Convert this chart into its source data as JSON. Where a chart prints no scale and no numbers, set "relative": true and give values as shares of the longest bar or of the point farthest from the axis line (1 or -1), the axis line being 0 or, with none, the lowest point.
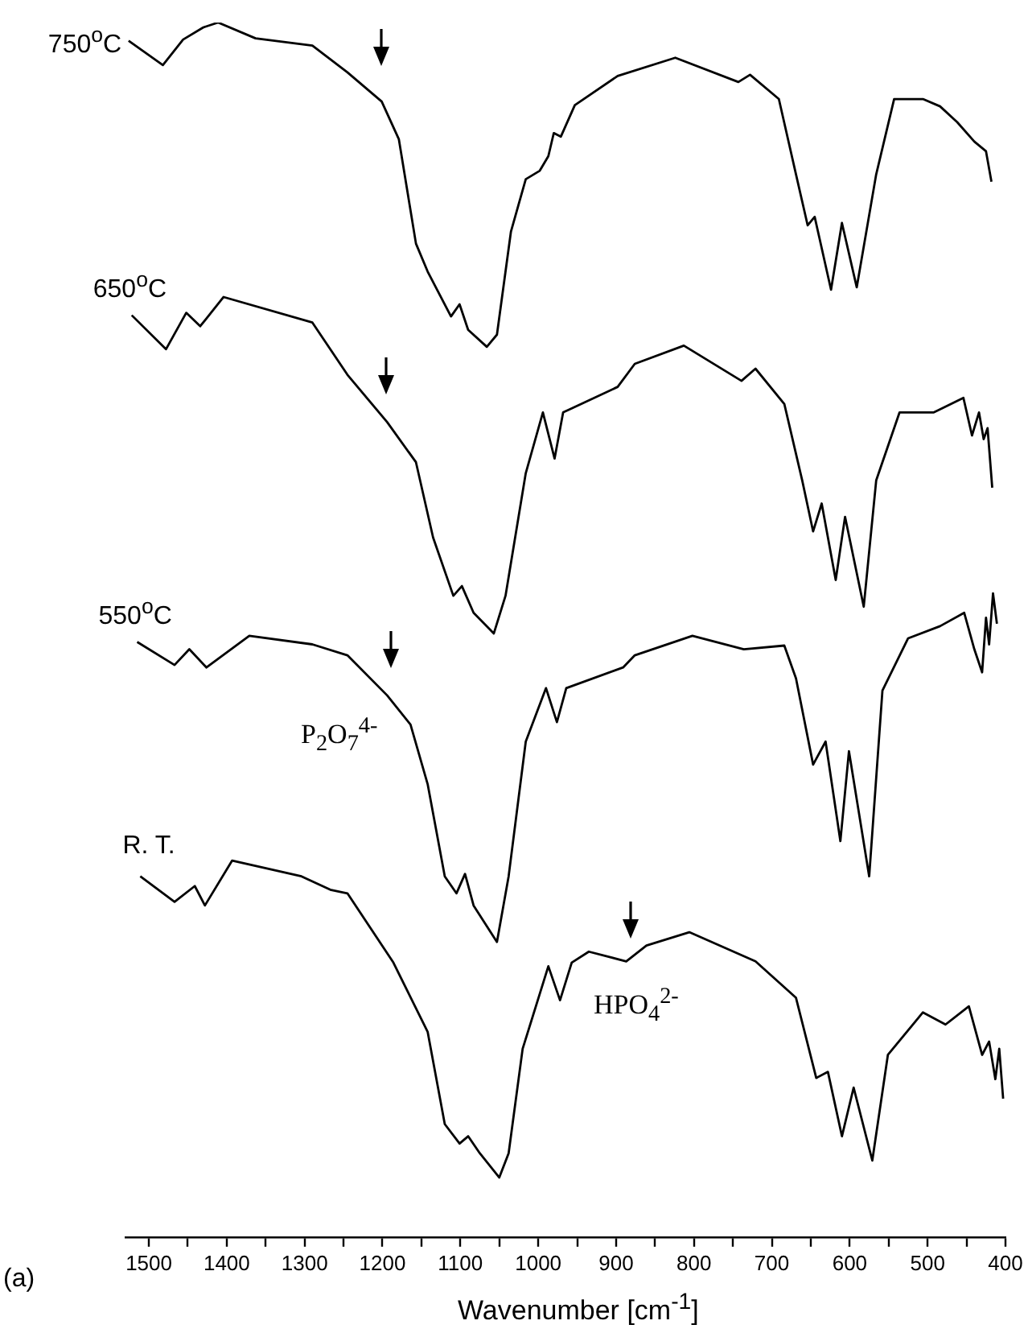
{
  "chart_data": {
    "type": "line",
    "relative": true,
    "xlabel": "Wavenumber [cm$^{-1}$]",
    "xlim": [
      1530,
      400
    ],
    "xticks": [
      1500,
      {
        "value": 1450,
        "label": null
      },
      1400,
      {
        "value": 1350,
        "label": null
      },
      1300,
      {
        "value": 1250,
        "label": null
      },
      1200,
      {
        "value": 1150,
        "label": null
      },
      1100,
      {
        "value": 1050,
        "label": null
      },
      1000,
      {
        "value": 950,
        "label": null
      },
      900,
      {
        "value": 850,
        "label": null
      },
      800,
      {
        "value": 750,
        "label": null
      },
      700,
      {
        "value": 650,
        "label": null
      },
      600,
      {
        "value": 550,
        "label": null
      },
      500,
      {
        "value": 450,
        "label": null
      },
      400
    ],
    "grid": false,
    "legend": false,
    "marker": "none",
    "line_style": "solid",
    "annotations": [
      "P$_{2}$O$_{7}$$^{4-}$",
      "HPO$_{4}$$^{2-}$",
      "(a)"
    ],
    "series": [
      {
        "name": "750$^{o}$C",
        "color": "#000000",
        "x": [
          1526,
          1482,
          1456,
          1430,
          1411,
          1363,
          1290,
          1245,
          1201,
          1179,
          1157,
          1142,
          1112,
          1101,
          1090,
          1066,
          1053,
          1035,
          1016,
          998,
          987,
          980,
          971,
          953,
          898,
          824,
          743,
          728,
          691,
          669,
          654,
          645,
          624,
          610,
          591,
          566,
          543,
          506,
          484,
          462,
          440,
          425,
          418
        ],
        "values": [
          0.985,
          0.965,
          0.986,
          0.996,
          1.0,
          0.987,
          0.981,
          0.959,
          0.935,
          0.904,
          0.818,
          0.795,
          0.758,
          0.768,
          0.747,
          0.733,
          0.743,
          0.828,
          0.871,
          0.878,
          0.89,
          0.909,
          0.906,
          0.932,
          0.956,
          0.971,
          0.951,
          0.957,
          0.937,
          0.875,
          0.833,
          0.84,
          0.78,
          0.835,
          0.782,
          0.875,
          0.937,
          0.937,
          0.931,
          0.918,
          0.902,
          0.894,
          0.869
        ]
      },
      {
        "name": "650$^{o}$C",
        "color": "#000000",
        "x": [
          1522,
          1478,
          1452,
          1434,
          1404,
          1290,
          1245,
          1194,
          1157,
          1135,
          1109,
          1098,
          1083,
          1057,
          1042,
          1016,
          994,
          979,
          968,
          898,
          876,
          813,
          739,
          721,
          684,
          661,
          647,
          636,
          618,
          606,
          582,
          566,
          536,
          492,
          454,
          443,
          434,
          428,
          423,
          417
        ],
        "values": [
          0.759,
          0.731,
          0.761,
          0.75,
          0.774,
          0.753,
          0.71,
          0.671,
          0.638,
          0.576,
          0.528,
          0.536,
          0.514,
          0.497,
          0.528,
          0.629,
          0.679,
          0.641,
          0.679,
          0.7,
          0.719,
          0.734,
          0.705,
          0.715,
          0.686,
          0.623,
          0.581,
          0.604,
          0.541,
          0.593,
          0.519,
          0.623,
          0.679,
          0.679,
          0.691,
          0.66,
          0.679,
          0.657,
          0.666,
          0.617
        ]
      },
      {
        "name": "550$^{o}$C",
        "color": "#000000",
        "x": [
          1515,
          1467,
          1448,
          1426,
          1371,
          1290,
          1245,
          1194,
          1164,
          1142,
          1120,
          1105,
          1094,
          1083,
          1053,
          1038,
          1016,
          990,
          976,
          964,
          891,
          876,
          802,
          736,
          684,
          669,
          647,
          631,
          612,
          601,
          575,
          558,
          525,
          484,
          453,
          440,
          430,
          425,
          421,
          416,
          411
        ],
        "values": [
          0.49,
          0.471,
          0.484,
          0.469,
          0.495,
          0.488,
          0.479,
          0.446,
          0.422,
          0.373,
          0.297,
          0.283,
          0.299,
          0.273,
          0.243,
          0.297,
          0.408,
          0.452,
          0.424,
          0.452,
          0.469,
          0.479,
          0.495,
          0.484,
          0.487,
          0.46,
          0.389,
          0.408,
          0.326,
          0.4,
          0.297,
          0.45,
          0.493,
          0.503,
          0.514,
          0.484,
          0.465,
          0.51,
          0.488,
          0.53,
          0.505
        ]
      },
      {
        "name": "R. T.",
        "color": "#000000",
        "x": [
          1511,
          1467,
          1441,
          1428,
          1393,
          1304,
          1267,
          1245,
          1186,
          1142,
          1120,
          1101,
          1090,
          1075,
          1050,
          1038,
          1020,
          987,
          972,
          957,
          935,
          887,
          861,
          806,
          721,
          669,
          643,
          628,
          610,
          595,
          571,
          551,
          506,
          477,
          447,
          430,
          421,
          413,
          408,
          403
        ],
        "values": [
          0.297,
          0.276,
          0.289,
          0.273,
          0.31,
          0.297,
          0.286,
          0.283,
          0.226,
          0.169,
          0.093,
          0.077,
          0.083,
          0.069,
          0.049,
          0.069,
          0.155,
          0.223,
          0.195,
          0.226,
          0.235,
          0.227,
          0.24,
          0.251,
          0.227,
          0.197,
          0.131,
          0.136,
          0.083,
          0.123,
          0.063,
          0.15,
          0.185,
          0.175,
          0.19,
          0.15,
          0.161,
          0.13,
          0.155,
          0.114
        ]
      }
    ]
  }
}
